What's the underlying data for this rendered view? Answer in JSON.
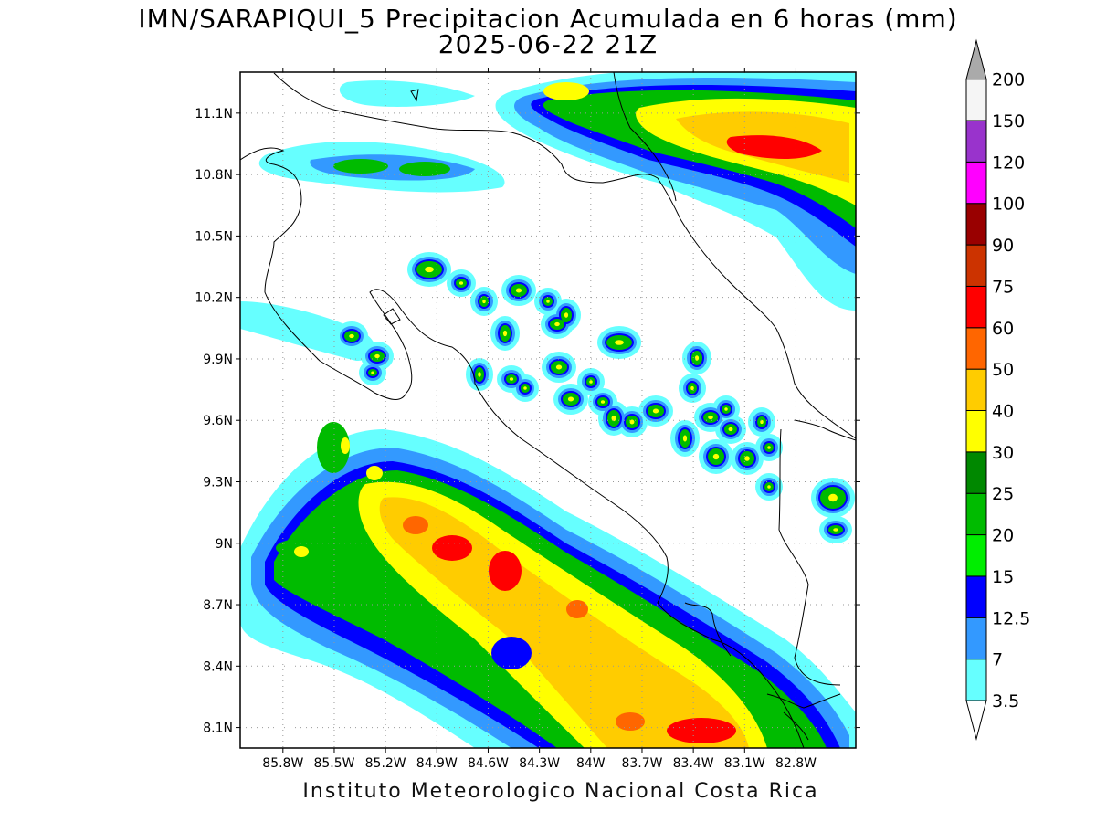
{
  "title": {
    "line1": "IMN/SARAPIQUI_5 Precipitacion Acumulada en 6 horas (mm)",
    "line2": "2025-06-22 21Z"
  },
  "footer": "Instituto Meteorologico Nacional Costa Rica",
  "map": {
    "lon_range": [
      -86.05,
      -82.45
    ],
    "lat_range": [
      8.0,
      11.3
    ],
    "lat_ticks": [
      "8.1N",
      "8.4N",
      "8.7N",
      "9N",
      "9.3N",
      "9.6N",
      "9.9N",
      "10.2N",
      "10.5N",
      "10.8N",
      "11.1N"
    ],
    "lat_values": [
      8.1,
      8.4,
      8.7,
      9.0,
      9.3,
      9.6,
      9.9,
      10.2,
      10.5,
      10.8,
      11.1
    ],
    "lon_ticks": [
      "85.8W",
      "85.5W",
      "85.2W",
      "84.9W",
      "84.6W",
      "84.3W",
      "84W",
      "83.7W",
      "83.4W",
      "83.1W",
      "82.8W"
    ],
    "lon_values": [
      -85.8,
      -85.5,
      -85.2,
      -84.9,
      -84.6,
      -84.3,
      -84.0,
      -83.7,
      -83.4,
      -83.1,
      -82.8
    ],
    "grid": true,
    "units": "mm"
  },
  "colorbar": {
    "levels": [
      "3.5",
      "7",
      "12.5",
      "15",
      "20",
      "25",
      "30",
      "40",
      "50",
      "60",
      "75",
      "90",
      "100",
      "120",
      "150",
      "200"
    ],
    "colors": [
      "#66ffff",
      "#3399ff",
      "#0000ff",
      "#00ee00",
      "#00bb00",
      "#008800",
      "#ffff00",
      "#ffcc00",
      "#ff6600",
      "#ff0000",
      "#cc3300",
      "#990000",
      "#ff00ff",
      "#9933cc",
      "#f5f5f5",
      "#aaaaaa"
    ]
  }
}
